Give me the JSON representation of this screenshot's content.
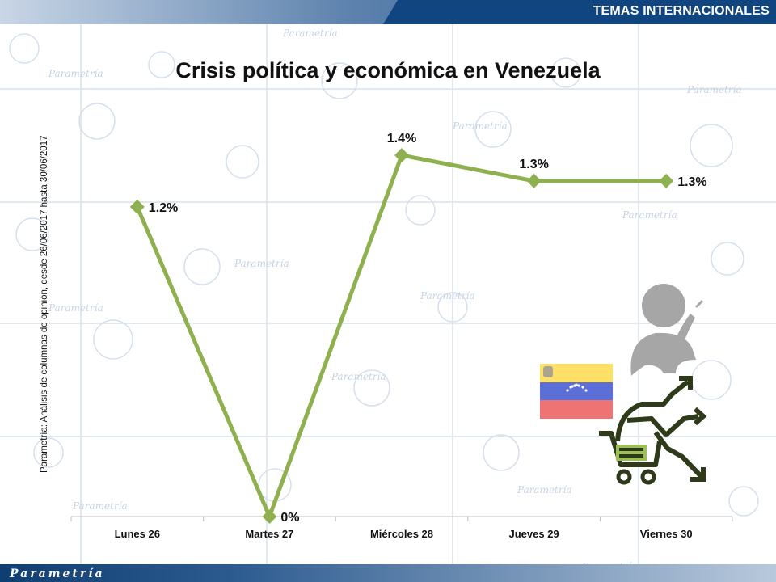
{
  "header": {
    "section_label": "TEMAS INTERNACIONALES"
  },
  "side_note": "Parametría: Análisis de columnas de opinión, desde 26/06/2017 hasta 30/06/2017",
  "footer": {
    "logo_text": "Parametría"
  },
  "watermark_text": "Parametría",
  "colors": {
    "line": "#8fb04f",
    "flag_yellow": "#ffe066",
    "flag_blue": "#5b6fd6",
    "flag_red": "#f07373",
    "illustration": "#2e3a1a",
    "illustration_gray": "#a6a6a6",
    "illustration_green": "#9cbf5a"
  },
  "icons": [
    "venezuela-flag-icon",
    "person-thinking-icon",
    "shopping-cart-icon",
    "trend-arrows-icon"
  ],
  "chart_data": {
    "type": "line",
    "title": "Crisis política y económica en Venezuela",
    "categories": [
      "Lunes 26",
      "Martes 27",
      "Miércoles 28",
      "Jueves 29",
      "Viernes 30"
    ],
    "series": [
      {
        "values": [
          1.2,
          0,
          1.4,
          1.3,
          1.3
        ],
        "labels": [
          "1.2%",
          "0%",
          "1.4%",
          "1.3%",
          "1.3%"
        ]
      }
    ],
    "ylim": [
      0,
      1.4
    ],
    "grid": false,
    "legend": "none"
  }
}
